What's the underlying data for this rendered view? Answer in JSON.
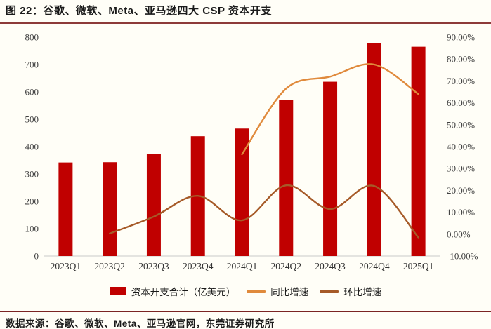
{
  "figure": {
    "title": "图 22：谷歌、微软、Meta、亚马逊四大 CSP 资本开支",
    "source": "数据来源：谷歌、微软、Meta、亚马逊官网，东莞证券研究所"
  },
  "colors": {
    "bar": "#c00000",
    "yoy_line": "#e08a3c",
    "qoq_line": "#a65a28",
    "title_rule": "#8d3a39",
    "footer_rule": "#7b2423",
    "background": "#fffef7",
    "axis_text": "#404040",
    "baseline": "#c9c9c9"
  },
  "chart_data": {
    "type": "bar",
    "subtype": "bar-and-line-combo",
    "categories": [
      "2023Q1",
      "2023Q2",
      "2023Q3",
      "2023Q4",
      "2024Q1",
      "2024Q2",
      "2024Q3",
      "2024Q4",
      "2025Q1"
    ],
    "series": [
      {
        "name": "资本开支合计（亿美元）",
        "type": "bar",
        "axis": "left",
        "values": [
          342,
          343,
          372,
          438,
          466,
          571,
          637,
          777,
          765
        ]
      },
      {
        "name": "同比增速",
        "type": "line",
        "axis": "right",
        "values": [
          null,
          null,
          null,
          null,
          36.5,
          66.5,
          72,
          77.5,
          64
        ]
      },
      {
        "name": "环比增速",
        "type": "line",
        "axis": "right",
        "values": [
          null,
          0.3,
          8,
          17.5,
          6.3,
          22.3,
          11.5,
          22,
          -1.5
        ]
      }
    ],
    "left_axis": {
      "min": 0,
      "max": 800,
      "step": 100,
      "ticks": [
        "800",
        "700",
        "600",
        "500",
        "400",
        "300",
        "200",
        "100",
        "0"
      ]
    },
    "right_axis": {
      "min": -10,
      "max": 90,
      "step": 10,
      "ticks": [
        "90.00%",
        "80.00%",
        "70.00%",
        "60.00%",
        "50.00%",
        "40.00%",
        "30.00%",
        "20.00%",
        "10.00%",
        "0.00%",
        "-10.00%"
      ]
    },
    "grid": false,
    "legend_position": "bottom"
  }
}
